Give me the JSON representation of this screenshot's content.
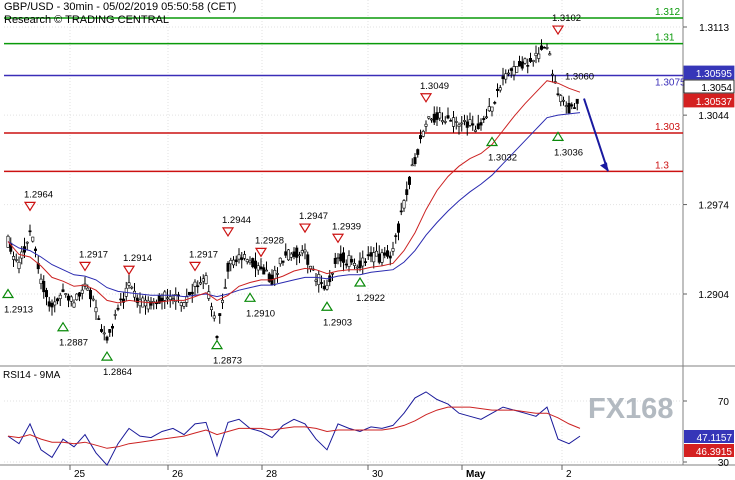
{
  "header": {
    "title": "GBP/USD - 30min - 05/02/2019 05:50:58 (CET)",
    "research": "Research © TRADING CENTRAL"
  },
  "watermark": "FX168",
  "chart_data": [
    {
      "type": "candlestick",
      "title": "GBP/USD - 30min - 05/02/2019 05:50:58 (CET)",
      "x_tick_labels": [
        "25",
        "26",
        "28",
        "30",
        "May",
        "2"
      ],
      "y_tick_labels": [
        "1.3113",
        "1.3044",
        "1.2974",
        "1.2904"
      ],
      "ylim": [
        1.2842,
        1.3128
      ],
      "current_price_labels": [
        {
          "value": 1.30595,
          "text": "1.30595",
          "color": "#ffffff",
          "bg": "#3636b8",
          "fg": "#3636b8"
        },
        {
          "value": 1.3054,
          "text": "1.3054",
          "color": "#000000",
          "bg": "#ffffff",
          "fg": "#000000"
        },
        {
          "value": 1.30537,
          "text": "1.30537",
          "color": "#ffffff",
          "bg": "#d42020",
          "fg": "#d42020"
        }
      ],
      "horizontal_levels": [
        {
          "value": 1.312,
          "label": "1.312",
          "color": "#0a9a0a"
        },
        {
          "value": 1.31,
          "label": "1.31",
          "color": "#0a9a0a"
        },
        {
          "value": 1.3075,
          "label": "1.3075",
          "color": "#3a2db8"
        },
        {
          "value": 1.303,
          "label": "1.303",
          "color": "#cc1111"
        },
        {
          "value": 1.3,
          "label": "1.3",
          "color": "#cc1111"
        }
      ],
      "close_approx": [
        1.2945,
        1.2925,
        1.2955,
        1.2915,
        1.2893,
        1.2905,
        1.2897,
        1.2913,
        1.2892,
        1.2866,
        1.2892,
        1.2909,
        1.2898,
        1.2895,
        1.2901,
        1.2903,
        1.2898,
        1.2911,
        1.2915,
        1.2874,
        1.2926,
        1.2935,
        1.2929,
        1.2925,
        1.2915,
        1.2932,
        1.2937,
        1.2935,
        1.2918,
        1.2908,
        1.2934,
        1.293,
        1.2926,
        1.2934,
        1.2932,
        1.2938,
        1.2975,
        1.301,
        1.3039,
        1.3042,
        1.304,
        1.3038,
        1.3036,
        1.3035,
        1.305,
        1.307,
        1.308,
        1.3085,
        1.309,
        1.3098,
        1.306,
        1.305,
        1.3054
      ],
      "ma_fast_approx": [
        1.2945,
        1.2935,
        1.2933,
        1.2926,
        1.2917,
        1.2914,
        1.291,
        1.2911,
        1.2907,
        1.2899,
        1.2897,
        1.2899,
        1.2898,
        1.2897,
        1.2898,
        1.2899,
        1.2899,
        1.2902,
        1.2905,
        1.2899,
        1.2903,
        1.291,
        1.2913,
        1.2915,
        1.2915,
        1.2918,
        1.2922,
        1.2924,
        1.2923,
        1.292,
        1.2922,
        1.2923,
        1.2923,
        1.2925,
        1.2926,
        1.2928,
        1.2938,
        1.2952,
        1.297,
        1.2985,
        1.2996,
        1.3004,
        1.301,
        1.3014,
        1.3021,
        1.3032,
        1.3043,
        1.3053,
        1.3062,
        1.3071,
        1.3069,
        1.3065,
        1.3062
      ],
      "ma_slow_approx": [
        1.2945,
        1.294,
        1.2938,
        1.2933,
        1.2927,
        1.2923,
        1.2919,
        1.2918,
        1.2915,
        1.2909,
        1.2906,
        1.2905,
        1.2904,
        1.2903,
        1.2903,
        1.2903,
        1.2902,
        1.2903,
        1.2904,
        1.2902,
        1.2904,
        1.2907,
        1.2909,
        1.2911,
        1.2911,
        1.2913,
        1.2915,
        1.2917,
        1.2917,
        1.2916,
        1.2918,
        1.2919,
        1.2919,
        1.2921,
        1.2922,
        1.2923,
        1.2929,
        1.2938,
        1.295,
        1.296,
        1.2969,
        1.2977,
        1.2984,
        1.299,
        1.2997,
        1.3006,
        1.3015,
        1.3024,
        1.3033,
        1.3042,
        1.3044,
        1.3045,
        1.3046
      ],
      "peak_markers": [
        {
          "i": 2,
          "value": 1.2964,
          "label": "1.2964",
          "type": "high"
        },
        {
          "i": 7,
          "value": 1.2917,
          "label": "1.2917",
          "type": "high"
        },
        {
          "i": 11,
          "value": 1.2914,
          "label": "1.2914",
          "type": "high"
        },
        {
          "i": 17,
          "value": 1.2917,
          "label": "1.2917",
          "type": "high"
        },
        {
          "i": 20,
          "value": 1.2944,
          "label": "1.2944",
          "type": "high"
        },
        {
          "i": 23,
          "value": 1.2928,
          "label": "1.2928",
          "type": "high"
        },
        {
          "i": 27,
          "value": 1.2947,
          "label": "1.2947",
          "type": "high"
        },
        {
          "i": 30,
          "value": 1.2939,
          "label": "1.2939",
          "type": "high"
        },
        {
          "i": 38,
          "value": 1.3049,
          "label": "1.3049",
          "type": "high"
        },
        {
          "i": 50,
          "value": 1.3102,
          "label": "1.3102",
          "type": "high"
        },
        {
          "i": 0,
          "value": 1.2913,
          "label": "1.2913",
          "type": "low"
        },
        {
          "i": 5,
          "value": 1.2887,
          "label": "1.2887",
          "type": "low"
        },
        {
          "i": 9,
          "value": 1.2864,
          "label": "1.2864",
          "type": "low"
        },
        {
          "i": 19,
          "value": 1.2873,
          "label": "1.2873",
          "type": "low"
        },
        {
          "i": 22,
          "value": 1.291,
          "label": "1.2910",
          "type": "low"
        },
        {
          "i": 29,
          "value": 1.2903,
          "label": "1.2903",
          "type": "low"
        },
        {
          "i": 32,
          "value": 1.2922,
          "label": "1.2922",
          "type": "low"
        },
        {
          "i": 44,
          "value": 1.3032,
          "label": "1.3032",
          "type": "low"
        },
        {
          "i": 50,
          "value": 1.3036,
          "label": "1.3036",
          "type": "low"
        }
      ],
      "annotation_label": "1.3060",
      "forecast_arrow": {
        "from": 1.3057,
        "to": 1.3,
        "color": "#1a1aa0"
      }
    },
    {
      "type": "line",
      "title": "RSI14 - 9MA",
      "ylim": [
        20,
        85
      ],
      "y_tick_labels": [
        "70",
        "30"
      ],
      "current_labels": [
        {
          "value": 47.1157,
          "text": "47.1157",
          "bg": "#3636b8",
          "color": "#ffffff"
        },
        {
          "value": 46.3915,
          "text": "46.3915",
          "bg": "#d42020",
          "color": "#ffffff"
        }
      ],
      "series": [
        {
          "name": "RSI14",
          "color": "#1a1a9a",
          "values": [
            47,
            42,
            55,
            38,
            33,
            45,
            40,
            48,
            36,
            28,
            42,
            52,
            47,
            46,
            50,
            52,
            48,
            55,
            56,
            34,
            56,
            58,
            52,
            50,
            46,
            54,
            58,
            55,
            45,
            38,
            55,
            52,
            50,
            53,
            52,
            54,
            62,
            72,
            76,
            71,
            68,
            62,
            60,
            58,
            62,
            66,
            64,
            62,
            60,
            66,
            45,
            42,
            47
          ]
        },
        {
          "name": "MA9",
          "color": "#cc2222",
          "values": [
            47,
            46,
            48,
            45,
            43,
            43,
            42,
            43,
            41,
            39,
            40,
            42,
            43,
            44,
            45,
            46,
            47,
            49,
            51,
            48,
            50,
            52,
            52,
            52,
            51,
            52,
            53,
            53,
            52,
            50,
            51,
            51,
            51,
            51,
            51,
            52,
            54,
            57,
            61,
            64,
            66,
            66,
            66,
            65,
            64,
            64,
            64,
            63,
            62,
            62,
            59,
            55,
            52
          ]
        }
      ]
    }
  ]
}
